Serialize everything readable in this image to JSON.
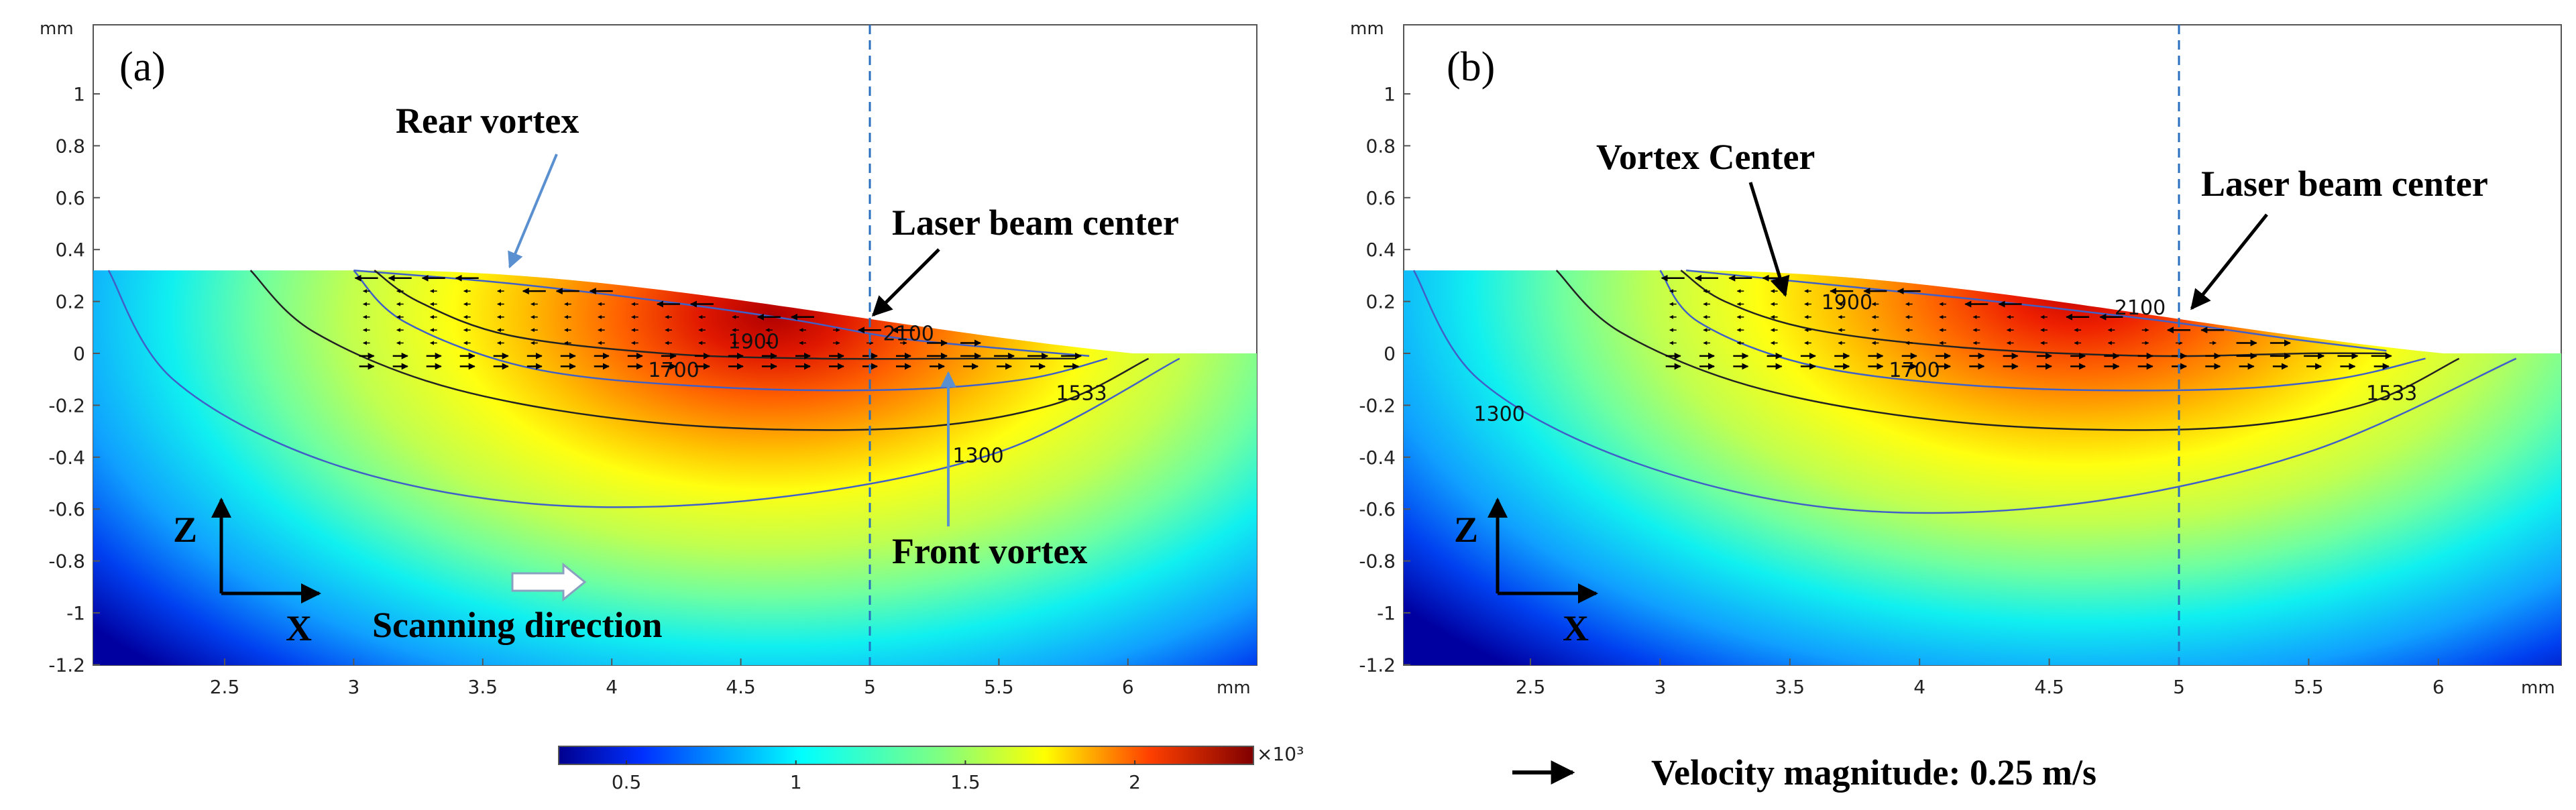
{
  "chart_data": [
    {
      "type": "heatmap",
      "panel_label": "(a)",
      "description_variable": "temperature contour with velocity arrows (melt pool cross-section)",
      "xlabel_unit": "mm",
      "ylabel_unit": "mm",
      "xlim": [
        2.0,
        6.5
      ],
      "ylim": [
        -1.2,
        1.2
      ],
      "xticks": [
        "2.5",
        "3",
        "3.5",
        "4",
        "4.5",
        "5",
        "5.5",
        "6"
      ],
      "xtick_values": [
        2.5,
        3,
        3.5,
        4,
        4.5,
        5,
        5.5,
        6
      ],
      "yticks": [
        "1",
        "0.8",
        "0.6",
        "0.4",
        "0.2",
        "0",
        "-0.2",
        "-0.4",
        "-0.6",
        "-0.8",
        "-1",
        "-1.2"
      ],
      "ytick_values": [
        1,
        0.8,
        0.6,
        0.4,
        0.2,
        0,
        -0.2,
        -0.4,
        -0.6,
        -0.8,
        -1,
        -1.2
      ],
      "isotherms": [
        {
          "label": "2100",
          "at": [
            5.15,
            0.05
          ]
        },
        {
          "label": "1900",
          "at": [
            4.55,
            0.02
          ]
        },
        {
          "label": "1700",
          "at": [
            4.24,
            -0.09
          ]
        },
        {
          "label": "1533",
          "at": [
            5.82,
            -0.18
          ]
        },
        {
          "label": "1300",
          "at": [
            5.42,
            -0.42
          ]
        }
      ],
      "laser_beam_x": 5,
      "annotations": [
        "Rear vortex",
        "Laser beam center",
        "Front vortex",
        "Scanning direction"
      ],
      "axis_glyph": {
        "z": "Z",
        "x": "X"
      }
    },
    {
      "type": "heatmap",
      "panel_label": "(b)",
      "xlabel_unit": "mm",
      "ylabel_unit": "mm",
      "xlim": [
        2.0,
        6.5
      ],
      "ylim": [
        -1.2,
        1.2
      ],
      "xticks": [
        "2.5",
        "3",
        "3.5",
        "4",
        "4.5",
        "5",
        "5.5",
        "6"
      ],
      "xtick_values": [
        2.5,
        3,
        3.5,
        4,
        4.5,
        5,
        5.5,
        6
      ],
      "yticks": [
        "1",
        "0.8",
        "0.6",
        "0.4",
        "0.2",
        "0",
        "-0.2",
        "-0.4",
        "-0.6",
        "-0.8",
        "-1",
        "-1.2"
      ],
      "ytick_values": [
        1,
        0.8,
        0.6,
        0.4,
        0.2,
        0,
        -0.2,
        -0.4,
        -0.6,
        -0.8,
        -1,
        -1.2
      ],
      "isotherms": [
        {
          "label": "2100",
          "at": [
            4.85,
            0.15
          ]
        },
        {
          "label": "1900",
          "at": [
            3.72,
            0.17
          ]
        },
        {
          "label": "1700",
          "at": [
            3.98,
            -0.09
          ]
        },
        {
          "label": "1533",
          "at": [
            5.82,
            -0.18
          ]
        },
        {
          "label": "1300",
          "at": [
            2.38,
            -0.26
          ]
        }
      ],
      "laser_beam_x": 5,
      "annotations": [
        "Vortex Center",
        "Laser beam center"
      ],
      "axis_glyph": {
        "z": "Z",
        "x": "X"
      }
    }
  ],
  "colorbar": {
    "range": [
      300,
      2350
    ],
    "ticks": [
      "0.5",
      "1",
      "1.5",
      "2"
    ],
    "tick_values": [
      500,
      1000,
      1500,
      2000
    ],
    "multiplier": "×10³"
  },
  "legend": {
    "velocity_label": "Velocity magnitude: 0.25 m/s"
  },
  "colors": {
    "isotherm_blue": "#4060c8",
    "isotherm_black": "#222222",
    "laser_line": "#2a6fbf",
    "pointer_blue": "#5a8fd0"
  }
}
